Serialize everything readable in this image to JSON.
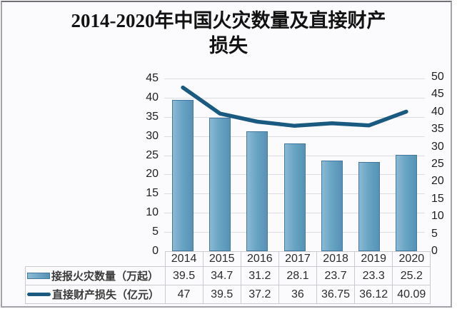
{
  "title": {
    "line1": "2014-2020年中国火灾数量及直接财产",
    "line2": "损失"
  },
  "chart_data": {
    "type": "bar",
    "subtype": "combo-bar-line",
    "categories": [
      "2014",
      "2015",
      "2016",
      "2017",
      "2018",
      "2019",
      "2020"
    ],
    "series": [
      {
        "name": "接报火灾数量（万起）",
        "type": "bar",
        "axis": "left",
        "values": [
          39.5,
          34.7,
          31.2,
          28.1,
          23.7,
          23.3,
          25.2
        ]
      },
      {
        "name": "直接财产损失（亿元）",
        "type": "line",
        "axis": "right",
        "values": [
          47,
          39.5,
          37.2,
          36,
          36.75,
          36.12,
          40.09
        ]
      }
    ],
    "left_axis": {
      "min": 0,
      "max": 45,
      "step": 5
    },
    "right_axis": {
      "min": 0,
      "max": 50,
      "step": 5
    },
    "grid": true,
    "legend_position": "bottom-table"
  },
  "colors": {
    "bar_fill": "#69a5c4",
    "bar_border": "#44789e",
    "line": "#1b5a80",
    "grid": "#dcdde1",
    "table_border": "#c9cbd0",
    "background": "#fbfbfd",
    "frame": "#a3a3a9",
    "text": "#202020"
  }
}
